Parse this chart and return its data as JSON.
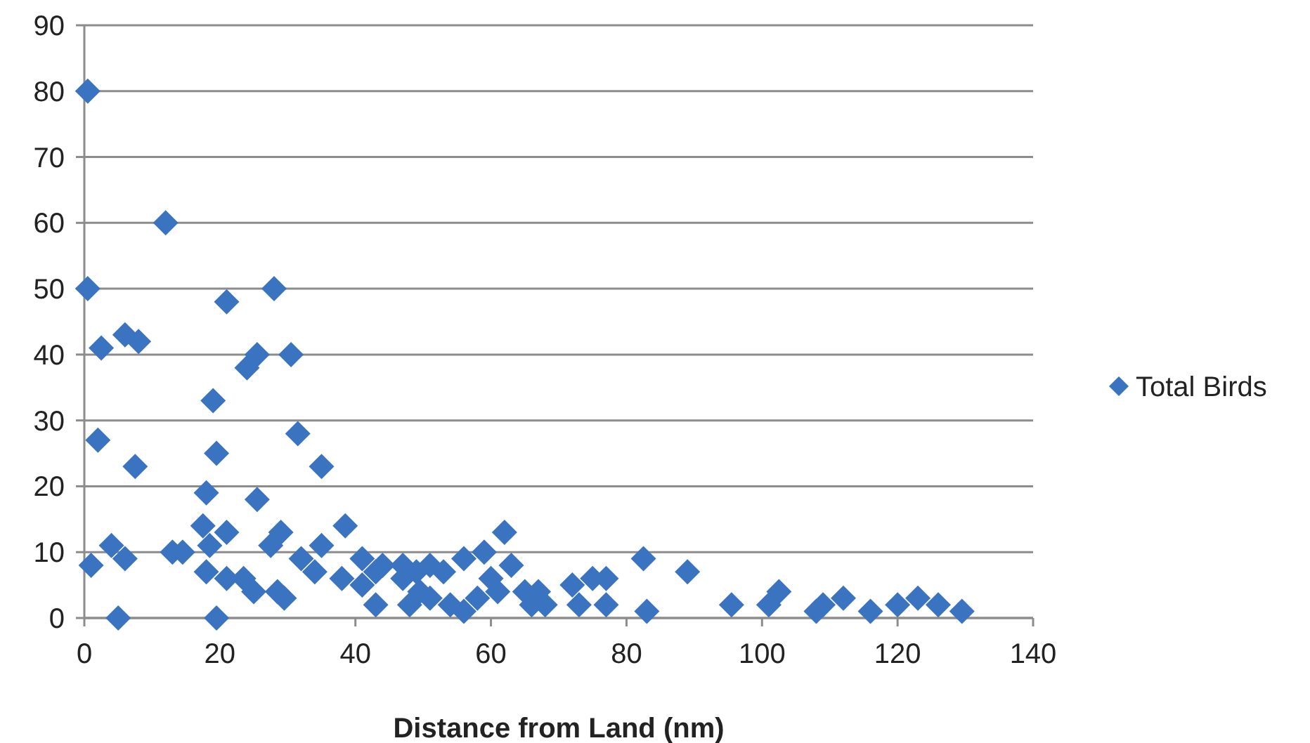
{
  "chart_data": {
    "type": "scatter",
    "xlabel": "Distance from Land (nm)",
    "xlim": [
      0,
      140
    ],
    "xticks": [
      0,
      20,
      40,
      60,
      80,
      100,
      120,
      140
    ],
    "ylim": [
      0,
      90
    ],
    "yticks": [
      0,
      10,
      20,
      30,
      40,
      50,
      60,
      70,
      80,
      90
    ],
    "grid": "y",
    "legend": "right",
    "marker": "diamond",
    "series": [
      {
        "name": "Total Birds",
        "color": "#3a73c0",
        "x": [
          0.5,
          0.5,
          12,
          2.5,
          6,
          8,
          2,
          7.5,
          4,
          6,
          1,
          5,
          21,
          28,
          24,
          25.5,
          30.5,
          19,
          19.5,
          31.5,
          35,
          18,
          25.5,
          17.5,
          13,
          14.5,
          19.5,
          18.5,
          21,
          21,
          18,
          23.5,
          25,
          27.5,
          29,
          28.5,
          29.5,
          32,
          35,
          34,
          38.5,
          38,
          41,
          43,
          44,
          43,
          47,
          48,
          49,
          51,
          51,
          53,
          54,
          56,
          56,
          59,
          60,
          62,
          63,
          65,
          66,
          67,
          68,
          72,
          73,
          75,
          77,
          77,
          82.5,
          83,
          89,
          95.5,
          101,
          102.5,
          108,
          109,
          112,
          116,
          120,
          123,
          126,
          129.5,
          41,
          47,
          49.5,
          58,
          61
        ],
        "values": [
          80,
          50,
          60,
          41,
          43,
          42,
          27,
          23,
          11,
          9,
          8,
          0,
          48,
          50,
          38,
          40,
          40,
          33,
          25,
          28,
          23,
          19,
          18,
          14,
          10,
          10,
          0,
          11,
          6,
          13,
          7,
          6,
          4,
          11,
          13,
          4,
          3,
          9,
          11,
          7,
          14,
          6,
          9,
          7,
          8,
          2,
          8,
          2,
          7,
          8,
          3,
          7,
          2,
          9,
          1,
          10,
          6,
          13,
          8,
          4,
          2,
          4,
          2,
          5,
          2,
          6,
          2,
          6,
          9,
          1,
          7,
          2,
          2,
          4,
          1,
          2,
          3,
          1,
          2,
          3,
          2,
          1,
          5,
          6,
          4,
          3,
          4
        ]
      }
    ]
  }
}
